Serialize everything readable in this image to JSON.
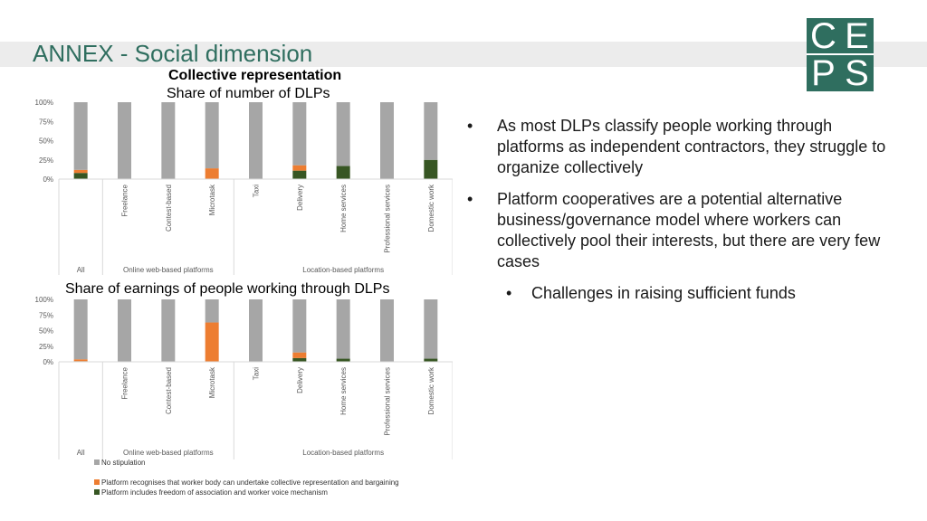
{
  "title": "ANNEX - Social dimension",
  "logo": {
    "letters": [
      "C",
      "E",
      "P",
      "S"
    ],
    "color": "#2f6e5f"
  },
  "chart_headings": {
    "chart1_title": "Collective representation",
    "chart1_subtitle": "Share of number of DLPs",
    "chart2_title": "Share of earnings of people working through DLPs"
  },
  "bullets": [
    "As most DLPs classify people working through platforms as independent contractors, they struggle to organize collectively",
    "Platform cooperatives are a potential alternative business/governance model where workers can collectively pool their  interests, but there are very few cases"
  ],
  "sub_bullets": [
    "Challenges in raising sufficient funds"
  ],
  "bullet_glyph": "•",
  "legend": [
    {
      "label": "No stipulation",
      "color": "#a6a6a6"
    },
    {
      "label": "Platform recognises that worker body can undertake collective representation and bargaining",
      "color": "#ed7d31"
    },
    {
      "label": "Platform includes freedom of association and worker voice mechanism",
      "color": "#375623"
    }
  ],
  "chart_data": [
    {
      "type": "bar",
      "stacked": true,
      "title": "Collective representation",
      "subtitle": "Share of number of DLPs",
      "categories": [
        "All",
        "Freelance",
        "Contest-based",
        "Microtask",
        "Taxi",
        "Delivery",
        "Home services",
        "Professional services",
        "Domestic work"
      ],
      "groups": [
        {
          "label": "All",
          "categories": [
            "All"
          ]
        },
        {
          "label": "Online web-based platforms",
          "categories": [
            "Freelance",
            "Contest-based",
            "Microtask"
          ]
        },
        {
          "label": "Location-based platforms",
          "categories": [
            "Taxi",
            "Delivery",
            "Home services",
            "Professional services",
            "Domestic work"
          ]
        }
      ],
      "series": [
        {
          "name": "Platform includes freedom of association and worker voice mechanism",
          "color": "#375623",
          "values": [
            8,
            0,
            0,
            0,
            0,
            11,
            17,
            0,
            25
          ]
        },
        {
          "name": "Platform recognises that worker body can undertake collective representation and bargaining",
          "color": "#ed7d31",
          "values": [
            4,
            0,
            0,
            14,
            0,
            7,
            0,
            0,
            0
          ]
        },
        {
          "name": "No stipulation",
          "color": "#a6a6a6",
          "values": [
            88,
            100,
            100,
            86,
            100,
            82,
            83,
            100,
            75
          ]
        }
      ],
      "ylim": [
        0,
        100
      ],
      "yticks": [
        "0%",
        "25%",
        "50%",
        "75%",
        "100%"
      ],
      "grid": false,
      "legend_position": "bottom"
    },
    {
      "type": "bar",
      "stacked": true,
      "title": "Share of earnings of people working through DLPs",
      "categories": [
        "All",
        "Freelance",
        "Contest-based",
        "Microtask",
        "Taxi",
        "Delivery",
        "Home services",
        "Professional services",
        "Domestic work"
      ],
      "groups": [
        {
          "label": "All",
          "categories": [
            "All"
          ]
        },
        {
          "label": "Online web-based platforms",
          "categories": [
            "Freelance",
            "Contest-based",
            "Microtask"
          ]
        },
        {
          "label": "Location-based platforms",
          "categories": [
            "Taxi",
            "Delivery",
            "Home services",
            "Professional services",
            "Domestic work"
          ]
        }
      ],
      "series": [
        {
          "name": "Platform includes freedom of association and worker voice mechanism",
          "color": "#375623",
          "values": [
            1,
            0,
            0,
            0,
            0,
            6,
            5,
            0,
            5
          ]
        },
        {
          "name": "Platform recognises that worker body can undertake collective representation and bargaining",
          "color": "#ed7d31",
          "values": [
            3,
            0,
            0,
            63,
            0,
            9,
            0,
            0,
            0
          ]
        },
        {
          "name": "No stipulation",
          "color": "#a6a6a6",
          "values": [
            96,
            100,
            100,
            37,
            100,
            85,
            95,
            100,
            95
          ]
        }
      ],
      "ylim": [
        0,
        100
      ],
      "yticks": [
        "0%",
        "25%",
        "50%",
        "75%",
        "100%"
      ],
      "grid": false,
      "legend_position": "bottom"
    }
  ]
}
